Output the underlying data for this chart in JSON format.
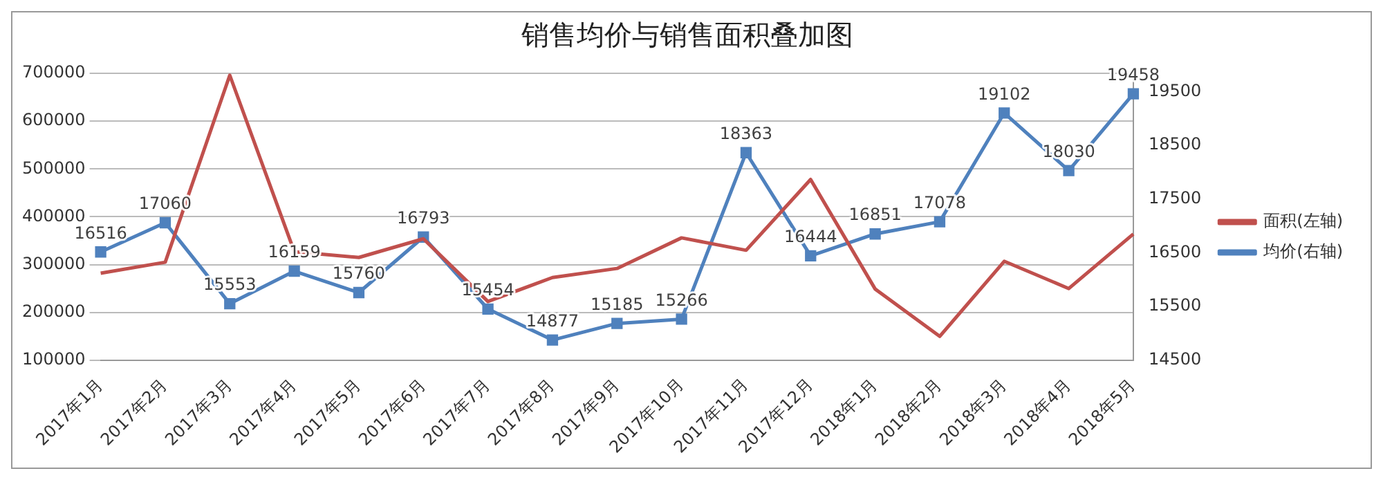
{
  "chart_data": {
    "type": "line",
    "title": "销售均价与销售面积叠加图",
    "categories": [
      "2017年1月",
      "2017年2月",
      "2017年3月",
      "2017年4月",
      "2017年5月",
      "2017年6月",
      "2017年7月",
      "2017年8月",
      "2017年9月",
      "2017年10月",
      "2017年11月",
      "2017年12月",
      "2018年1月",
      "2018年2月",
      "2018年3月",
      "2018年4月",
      "2018年5月"
    ],
    "series": [
      {
        "name": "面积(左轴)",
        "color": "#c0504d",
        "marker": "none",
        "values": [
          282000,
          305000,
          696000,
          327000,
          315000,
          354000,
          223000,
          273000,
          292000,
          356000,
          330000,
          478000,
          249000,
          150000,
          307000,
          250000,
          364000
        ]
      },
      {
        "name": "均价(右轴)",
        "color": "#4f81bd",
        "marker": "square",
        "axis": "y2",
        "values": [
          16516,
          17060,
          15553,
          16159,
          15760,
          16793,
          15454,
          14877,
          15185,
          15266,
          18363,
          16444,
          16851,
          17078,
          19102,
          18030,
          19458
        ],
        "value_labels": [
          "16516",
          "17060",
          "15553",
          "16159",
          "15760",
          "16793",
          "15454",
          "14877",
          "15185",
          "15266",
          "18363",
          "16444",
          "16851",
          "17078",
          "19102",
          "18030",
          "19458"
        ]
      }
    ],
    "ylim": [
      100000,
      700000
    ],
    "yticks": [
      100000,
      200000,
      300000,
      400000,
      500000,
      600000,
      700000
    ],
    "y2lim": [
      14500,
      19840
    ],
    "y2ticks": [
      14500,
      15500,
      16500,
      17500,
      18500,
      19500
    ],
    "grid": "y",
    "legend": "right",
    "line_style": "solid"
  }
}
